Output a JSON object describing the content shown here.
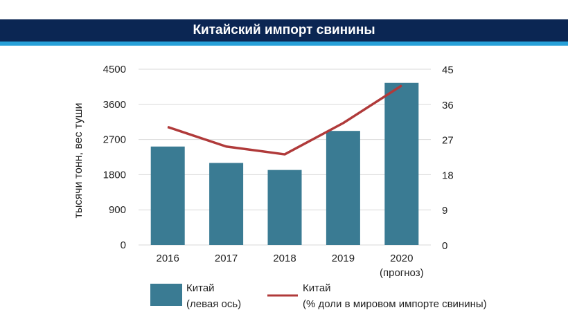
{
  "title": "Китайский импорт свинины",
  "colors": {
    "header_bg": "#0b2653",
    "header_accent": "#27a0d8",
    "bar": "#3a7b93",
    "line": "#b03a3a",
    "grid": "#d9d9d9"
  },
  "chart_data": {
    "type": "bar",
    "categories": [
      "2016",
      "2017",
      "2018",
      "2019",
      "2020"
    ],
    "category_sublabels": [
      "",
      "",
      "",
      "",
      "(прогноз)"
    ],
    "ylabel": "тысячи тонн, вес туши",
    "ylim": [
      0,
      4500
    ],
    "yticks": [
      "0",
      "900",
      "1800",
      "2700",
      "3600",
      "4500"
    ],
    "y2lim": [
      0,
      45
    ],
    "y2ticks": [
      "0",
      "9",
      "18",
      "27",
      "36",
      "45"
    ],
    "grid": true,
    "legend_position": "bottom",
    "series": [
      {
        "name": "Китай",
        "legend_sub": "(левая ось)",
        "type": "bar",
        "axis": "left",
        "values": [
          2520,
          2100,
          1920,
          2920,
          4150
        ]
      },
      {
        "name": "Китай",
        "legend_sub": "(% доли в мировом импорте свинины)",
        "type": "line",
        "axis": "right",
        "values": [
          30.2,
          25.2,
          23.2,
          31.2,
          40.8
        ]
      }
    ]
  }
}
